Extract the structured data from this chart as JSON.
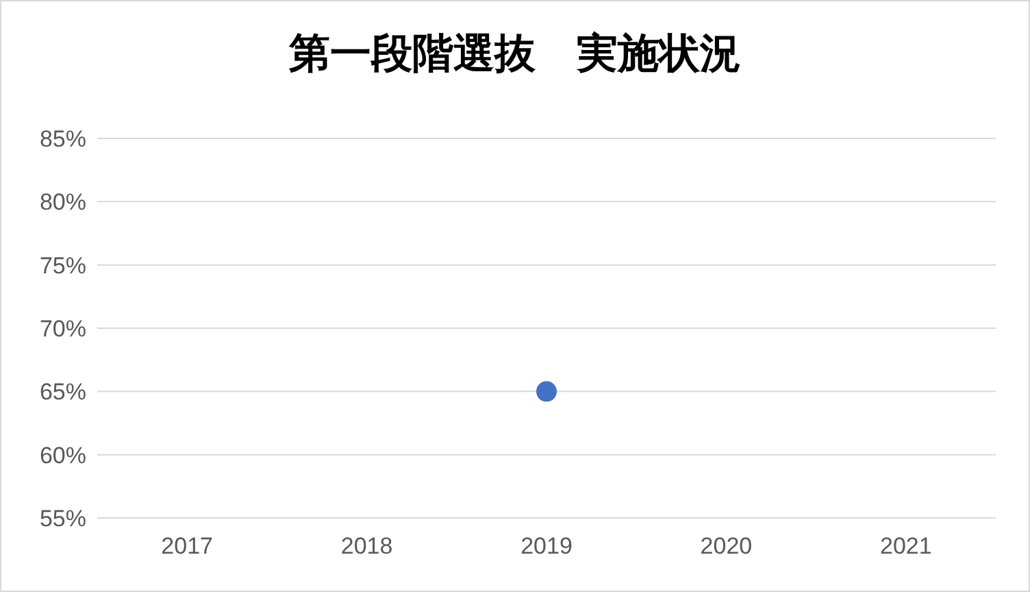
{
  "chart_data": {
    "type": "line",
    "title": "第一段階選抜　実施状況",
    "categories": [
      "2017",
      "2018",
      "2019",
      "2020",
      "2021"
    ],
    "series": [
      {
        "color": "#4472c4",
        "values": [
          null,
          null,
          65,
          null,
          null
        ]
      }
    ],
    "ylim": [
      55,
      85
    ],
    "yticks": [
      {
        "value": 55,
        "label": "55%"
      },
      {
        "value": 60,
        "label": "60%"
      },
      {
        "value": 65,
        "label": "65%"
      },
      {
        "value": 70,
        "label": "70%"
      },
      {
        "value": 75,
        "label": "75%"
      },
      {
        "value": 80,
        "label": "80%"
      },
      {
        "value": 85,
        "label": "85%"
      }
    ],
    "grid": "y",
    "marker": "circle"
  }
}
